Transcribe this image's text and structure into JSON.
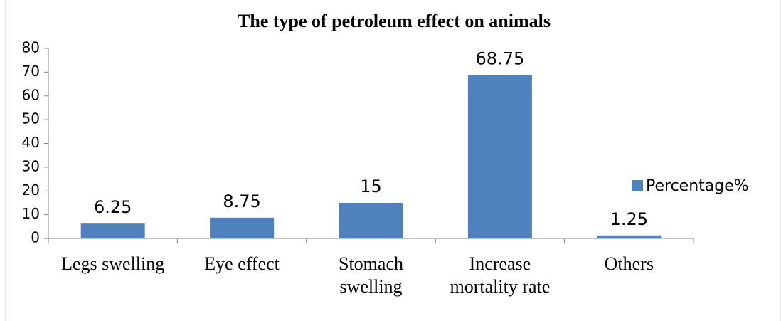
{
  "chart_data": {
    "type": "bar",
    "title": "The type of petroleum effect on animals",
    "categories": [
      "Legs swelling",
      "Eye effect",
      "Stomach swelling",
      "Increase mortality rate",
      "Others"
    ],
    "series": [
      {
        "name": "Percentage%",
        "color": "#4f81bd",
        "values": [
          6.25,
          8.75,
          15,
          68.75,
          1.25
        ]
      }
    ],
    "ylim": [
      0,
      80
    ],
    "yticks": [
      0,
      10,
      20,
      30,
      40,
      50,
      60,
      70,
      80
    ],
    "legend": "right",
    "data_labels": true
  }
}
